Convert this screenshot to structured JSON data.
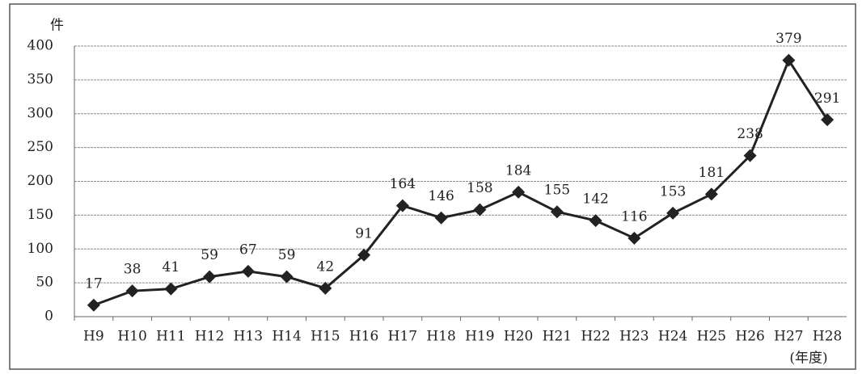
{
  "chart_data": {
    "type": "line",
    "y_label": "件",
    "x_label": "(年度)",
    "categories": [
      "H9",
      "H10",
      "H11",
      "H12",
      "H13",
      "H14",
      "H15",
      "H16",
      "H17",
      "H18",
      "H19",
      "H20",
      "H21",
      "H22",
      "H23",
      "H24",
      "H25",
      "H26",
      "H27",
      "H28"
    ],
    "series": [
      {
        "color": "#222222",
        "values": [
          17,
          38,
          41,
          59,
          67,
          59,
          42,
          91,
          164,
          146,
          158,
          184,
          155,
          142,
          116,
          153,
          181,
          238,
          379,
          291
        ]
      }
    ],
    "ylim": [
      0,
      400
    ],
    "yticks": [
      0,
      50,
      100,
      150,
      200,
      250,
      300,
      350,
      400
    ],
    "grid": true
  }
}
